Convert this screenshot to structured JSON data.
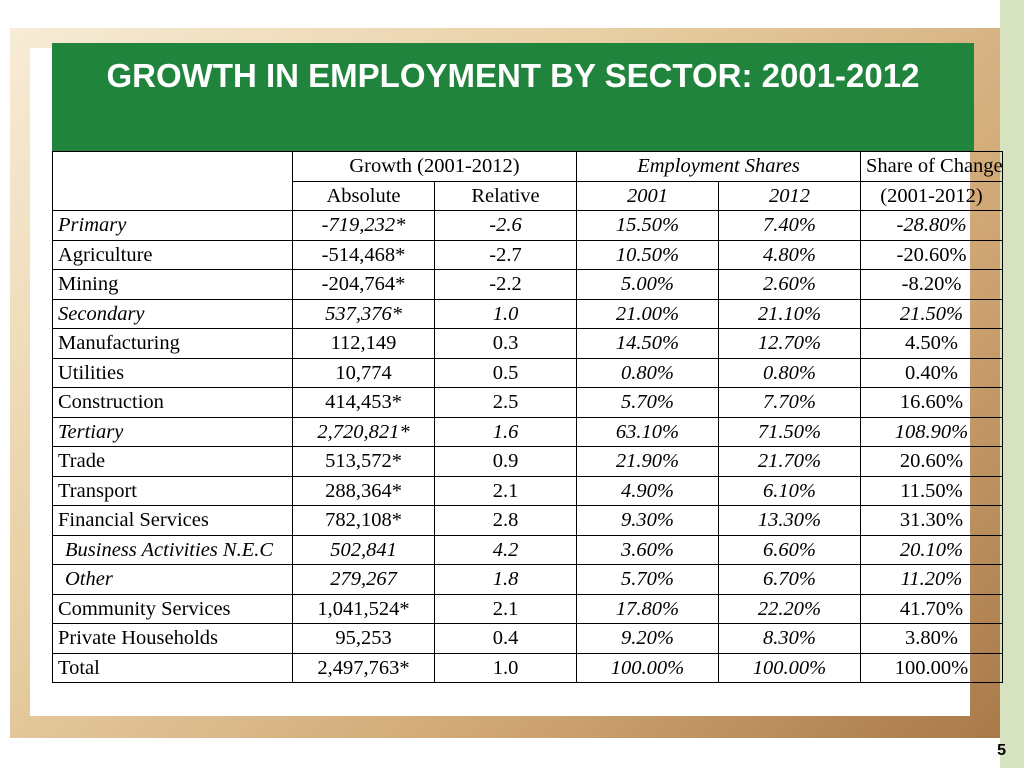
{
  "title": "GROWTH IN EMPLOYMENT BY SECTOR: 2001-2012",
  "headers": {
    "growth": "Growth (2001-2012)",
    "employment_shares": "Employment Shares",
    "share_of_change": "Share of Change",
    "absolute": "Absolute",
    "relative": "Relative",
    "y2001": "2001",
    "y2012": "2012",
    "change_period": "(2001-2012)"
  },
  "rows": [
    {
      "sector": "Primary",
      "absolute": "-719,232*",
      "relative": "-2.6",
      "s2001": "15.50%",
      "s2012": "7.40%",
      "change": "-28.80%"
    },
    {
      "sector": "Agriculture",
      "absolute": "-514,468*",
      "relative": "-2.7",
      "s2001": "10.50%",
      "s2012": "4.80%",
      "change": "-20.60%"
    },
    {
      "sector": "Mining",
      "absolute": "-204,764*",
      "relative": "-2.2",
      "s2001": "5.00%",
      "s2012": "2.60%",
      "change": "-8.20%"
    },
    {
      "sector": "Secondary",
      "absolute": "537,376*",
      "relative": "1.0",
      "s2001": "21.00%",
      "s2012": "21.10%",
      "change": "21.50%"
    },
    {
      "sector": "Manufacturing",
      "absolute": "112,149",
      "relative": "0.3",
      "s2001": "14.50%",
      "s2012": "12.70%",
      "change": "4.50%"
    },
    {
      "sector": "Utilities",
      "absolute": "10,774",
      "relative": "0.5",
      "s2001": "0.80%",
      "s2012": "0.80%",
      "change": "0.40%"
    },
    {
      "sector": "Construction",
      "absolute": "414,453*",
      "relative": "2.5",
      "s2001": "5.70%",
      "s2012": "7.70%",
      "change": "16.60%"
    },
    {
      "sector": "Tertiary",
      "absolute": "2,720,821*",
      "relative": "1.6",
      "s2001": "63.10%",
      "s2012": "71.50%",
      "change": "108.90%"
    },
    {
      "sector": "Trade",
      "absolute": "513,572*",
      "relative": "0.9",
      "s2001": "21.90%",
      "s2012": "21.70%",
      "change": "20.60%"
    },
    {
      "sector": "Transport",
      "absolute": "288,364*",
      "relative": "2.1",
      "s2001": "4.90%",
      "s2012": "6.10%",
      "change": "11.50%"
    },
    {
      "sector": "Financial Services",
      "absolute": "782,108*",
      "relative": "2.8",
      "s2001": "9.30%",
      "s2012": "13.30%",
      "change": "31.30%"
    },
    {
      "sector": "Business Activities N.E.C",
      "absolute": "502,841",
      "relative": "4.2",
      "s2001": "3.60%",
      "s2012": "6.60%",
      "change": "20.10%"
    },
    {
      "sector": "Other",
      "absolute": "279,267",
      "relative": "1.8",
      "s2001": "5.70%",
      "s2012": "6.70%",
      "change": "11.20%"
    },
    {
      "sector": "Community Services",
      "absolute": "1,041,524*",
      "relative": "2.1",
      "s2001": "17.80%",
      "s2012": "22.20%",
      "change": "41.70%"
    },
    {
      "sector": "Private Households",
      "absolute": "95,253",
      "relative": "0.4",
      "s2001": "9.20%",
      "s2012": "8.30%",
      "change": "3.80%"
    },
    {
      "sector": "Total",
      "absolute": "2,497,763*",
      "relative": "1.0",
      "s2001": "100.00%",
      "s2012": "100.00%",
      "change": "100.00%"
    }
  ],
  "page_number": "5",
  "colors": {
    "title_bar": "#21843d",
    "title_text": "#ffffff"
  }
}
